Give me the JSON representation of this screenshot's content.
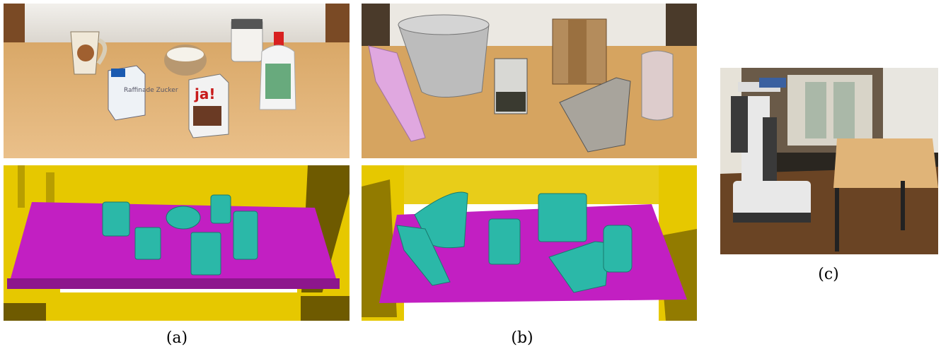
{
  "figure": {
    "panels": [
      {
        "id": "a",
        "caption": "(a)",
        "photo_description_hidden": ""
      },
      {
        "id": "b",
        "caption": "(b)"
      },
      {
        "id": "c",
        "caption": "(c)"
      }
    ],
    "photo_a": {
      "box1_brand": "ja!",
      "box1_label": "Raffinade\nZucker",
      "box2_brand": "ja!"
    },
    "colors": {
      "table_plane": "#c21fc2",
      "objects": "#2bb8a8",
      "background_voxels": "#e6c800",
      "voxel_shadow": "#6e5a00",
      "tabletop": "#e3b577",
      "wall": "#eceae6"
    }
  }
}
